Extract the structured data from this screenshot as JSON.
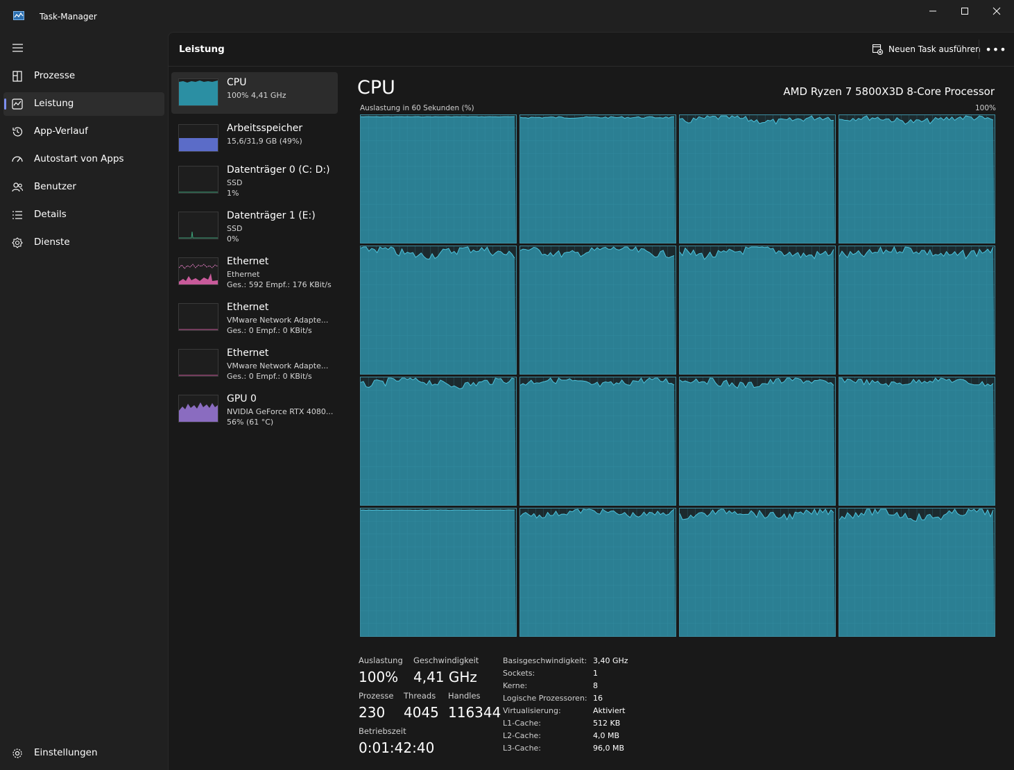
{
  "window": {
    "title": "Task-Manager"
  },
  "nav": {
    "items": [
      {
        "label": "Prozesse",
        "icon": "processes-icon",
        "active": false
      },
      {
        "label": "Leistung",
        "icon": "performance-icon",
        "active": true
      },
      {
        "label": "App-Verlauf",
        "icon": "history-icon",
        "active": false
      },
      {
        "label": "Autostart von Apps",
        "icon": "startup-icon",
        "active": false
      },
      {
        "label": "Benutzer",
        "icon": "users-icon",
        "active": false
      },
      {
        "label": "Details",
        "icon": "details-icon",
        "active": false
      },
      {
        "label": "Dienste",
        "icon": "services-icon",
        "active": false
      }
    ],
    "settings": {
      "label": "Einstellungen",
      "icon": "gear-icon"
    }
  },
  "header": {
    "title": "Leistung",
    "new_task_label": "Neuen Task ausführen"
  },
  "resources": [
    {
      "name": "CPU",
      "lines": [
        "100%  4,41 GHz"
      ],
      "thumb_color": "#2b8fa3"
    },
    {
      "name": "Arbeitsspeicher",
      "lines": [
        "15,6/31,9 GB (49%)"
      ],
      "thumb_color": "#5b6cc8"
    },
    {
      "name": "Datenträger 0 (C: D:)",
      "lines": [
        "SSD",
        "1%"
      ],
      "thumb_color": "#3da37a"
    },
    {
      "name": "Datenträger 1 (E:)",
      "lines": [
        "SSD",
        "0%"
      ],
      "thumb_color": "#3da37a"
    },
    {
      "name": "Ethernet",
      "lines": [
        "Ethernet",
        "Ges.: 592  Empf.: 176 KBit/s"
      ],
      "thumb_color": "#c85a9a"
    },
    {
      "name": "Ethernet",
      "lines": [
        "VMware Network Adapte...",
        "Ges.: 0  Empf.: 0 KBit/s"
      ],
      "thumb_color": "#c85a9a"
    },
    {
      "name": "Ethernet",
      "lines": [
        "VMware Network Adapte...",
        "Ges.: 0  Empf.: 0 KBit/s"
      ],
      "thumb_color": "#c85a9a"
    },
    {
      "name": "GPU 0",
      "lines": [
        "NVIDIA GeForce RTX 4080...",
        "56%  (61 °C)"
      ],
      "thumb_color": "#8a6cc0"
    }
  ],
  "cpu": {
    "title": "CPU",
    "model": "AMD Ryzen 7 5800X3D 8-Core Processor",
    "graph_label": "Auslastung in 60 Sekunden (%)",
    "graph_max": "100%",
    "core_count": 16,
    "stats": {
      "auslastung_label": "Auslastung",
      "auslastung": "100%",
      "geschwindigkeit_label": "Geschwindigkeit",
      "geschwindigkeit": "4,41 GHz",
      "prozesse_label": "Prozesse",
      "prozesse": "230",
      "threads_label": "Threads",
      "threads": "4045",
      "handles_label": "Handles",
      "handles": "116344",
      "betriebszeit_label": "Betriebszeit",
      "betriebszeit": "0:01:42:40"
    },
    "info": [
      {
        "key": "Basisgeschwindigkeit:",
        "value": "3,40 GHz"
      },
      {
        "key": "Sockets:",
        "value": "1"
      },
      {
        "key": "Kerne:",
        "value": "8"
      },
      {
        "key": "Logische Prozessoren:",
        "value": "16"
      },
      {
        "key": "Virtualisierung:",
        "value": "Aktiviert"
      },
      {
        "key": "L1-Cache:",
        "value": "512 KB"
      },
      {
        "key": "L2-Cache:",
        "value": "4,0 MB"
      },
      {
        "key": "L3-Cache:",
        "value": "96,0 MB"
      }
    ]
  },
  "colors": {
    "accent": "#7d8ff0",
    "cpu_fill": "#2b7f93",
    "cpu_line": "#4fc3dc"
  }
}
